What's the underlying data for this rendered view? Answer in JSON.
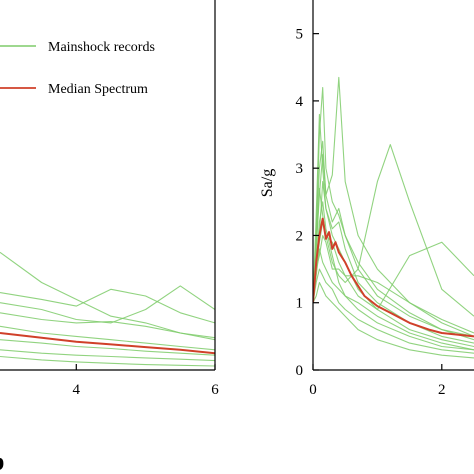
{
  "chart_data": [
    {
      "type": "line",
      "panel": "left",
      "xlabel": "",
      "ylabel": "",
      "xlim": [
        2.9,
        6
      ],
      "ylim": [
        0,
        5.5
      ],
      "xticks": [
        "4",
        "6"
      ],
      "xtick_values": [
        4,
        6
      ],
      "grid": false,
      "legend": {
        "placement": "top-right"
      },
      "series": [
        {
          "name": "Mainshock records",
          "color": "#7ecb6a",
          "x": [
            2.9,
            3.5,
            4.0,
            4.5,
            5.0,
            5.5,
            6.0
          ],
          "y": [
            1.75,
            1.3,
            1.05,
            0.8,
            0.7,
            0.55,
            0.48
          ]
        },
        {
          "name": "",
          "color": "#7ecb6a",
          "x": [
            2.9,
            3.5,
            4.0,
            4.5,
            5.0,
            5.5,
            6.0
          ],
          "y": [
            1.15,
            1.05,
            0.95,
            1.2,
            1.1,
            0.85,
            0.7
          ]
        },
        {
          "name": "",
          "color": "#7ecb6a",
          "x": [
            2.9,
            3.5,
            4.0,
            4.5,
            5.0,
            5.5,
            6.0
          ],
          "y": [
            1.0,
            0.9,
            0.75,
            0.7,
            0.9,
            1.25,
            0.9
          ]
        },
        {
          "name": "",
          "color": "#7ecb6a",
          "x": [
            2.9,
            3.5,
            4.0,
            4.5,
            5.0,
            5.5,
            6.0
          ],
          "y": [
            0.85,
            0.75,
            0.7,
            0.72,
            0.65,
            0.55,
            0.45
          ]
        },
        {
          "name": "",
          "color": "#7ecb6a",
          "x": [
            2.9,
            3.5,
            4.0,
            4.5,
            5.0,
            5.5,
            6.0
          ],
          "y": [
            0.65,
            0.55,
            0.5,
            0.45,
            0.4,
            0.35,
            0.3
          ]
        },
        {
          "name": "",
          "color": "#7ecb6a",
          "x": [
            2.9,
            3.5,
            4.0,
            4.5,
            5.0,
            5.5,
            6.0
          ],
          "y": [
            0.45,
            0.4,
            0.35,
            0.32,
            0.28,
            0.25,
            0.22
          ]
        },
        {
          "name": "",
          "color": "#7ecb6a",
          "x": [
            2.9,
            3.5,
            4.0,
            4.5,
            5.0,
            5.5,
            6.0
          ],
          "y": [
            0.3,
            0.25,
            0.22,
            0.2,
            0.18,
            0.16,
            0.14
          ]
        },
        {
          "name": "",
          "color": "#7ecb6a",
          "x": [
            2.9,
            3.5,
            4.0,
            4.5,
            5.0,
            5.5,
            6.0
          ],
          "y": [
            0.2,
            0.15,
            0.12,
            0.1,
            0.08,
            0.07,
            0.06
          ]
        },
        {
          "name": "Median Spectrum",
          "color": "#d0402a",
          "emphasis": true,
          "x": [
            2.9,
            3.5,
            4.0,
            4.5,
            5.0,
            5.5,
            6.0
          ],
          "y": [
            0.55,
            0.48,
            0.42,
            0.38,
            0.34,
            0.3,
            0.25
          ]
        }
      ]
    },
    {
      "type": "line",
      "panel": "right",
      "xlabel": "",
      "ylabel": "Sa/g",
      "xlim": [
        0,
        2.5
      ],
      "ylim": [
        0,
        5.5
      ],
      "xticks": [
        "0",
        "2"
      ],
      "xtick_values": [
        0,
        2
      ],
      "yticks": [
        "0",
        "1",
        "2",
        "3",
        "4",
        "5"
      ],
      "ytick_values": [
        0,
        1,
        2,
        3,
        4,
        5
      ],
      "grid": false,
      "series": [
        {
          "name": "",
          "color": "#7ecb6a",
          "x": [
            0,
            0.05,
            0.1,
            0.15,
            0.2,
            0.3,
            0.4,
            0.5,
            0.7,
            1.0,
            1.5,
            2.0,
            2.5
          ],
          "y": [
            1.0,
            2.0,
            3.5,
            4.2,
            3.0,
            2.5,
            2.3,
            2.0,
            1.5,
            1.1,
            0.8,
            0.6,
            0.5
          ]
        },
        {
          "name": "",
          "color": "#7ecb6a",
          "x": [
            0,
            0.05,
            0.1,
            0.15,
            0.2,
            0.3,
            0.4,
            0.5,
            0.7,
            1.0,
            1.5,
            2.0,
            2.5
          ],
          "y": [
            1.0,
            1.8,
            2.6,
            3.2,
            2.6,
            2.9,
            4.35,
            2.8,
            2.0,
            1.5,
            1.0,
            0.7,
            0.5
          ]
        },
        {
          "name": "",
          "color": "#7ecb6a",
          "x": [
            0,
            0.05,
            0.1,
            0.15,
            0.2,
            0.3,
            0.4,
            0.5,
            0.7,
            1.0,
            1.2,
            1.5,
            2.0,
            2.5
          ],
          "y": [
            1.0,
            1.5,
            1.9,
            2.2,
            2.0,
            1.6,
            1.4,
            1.3,
            1.5,
            2.8,
            3.35,
            2.5,
            1.2,
            0.8
          ]
        },
        {
          "name": "",
          "color": "#7ecb6a",
          "x": [
            0,
            0.05,
            0.1,
            0.15,
            0.2,
            0.3,
            0.4,
            0.5,
            0.7,
            1.0,
            1.5,
            2.0,
            2.5
          ],
          "y": [
            1.0,
            2.3,
            3.8,
            3.0,
            2.4,
            2.0,
            1.8,
            1.6,
            1.2,
            0.9,
            0.6,
            0.45,
            0.35
          ]
        },
        {
          "name": "",
          "color": "#7ecb6a",
          "x": [
            0,
            0.05,
            0.1,
            0.15,
            0.2,
            0.3,
            0.4,
            0.5,
            0.7,
            1.0,
            1.5,
            2.0,
            2.5
          ],
          "y": [
            1.0,
            1.4,
            1.8,
            1.6,
            1.5,
            1.3,
            1.2,
            1.1,
            1.0,
            0.8,
            0.55,
            0.4,
            0.3
          ]
        },
        {
          "name": "",
          "color": "#7ecb6a",
          "x": [
            0,
            0.05,
            0.1,
            0.15,
            0.2,
            0.3,
            0.4,
            0.5,
            0.7,
            1.0,
            1.5,
            2.0,
            2.5
          ],
          "y": [
            1.0,
            1.6,
            2.2,
            2.5,
            2.1,
            1.7,
            1.3,
            1.1,
            0.9,
            0.7,
            0.5,
            0.35,
            0.3
          ]
        },
        {
          "name": "",
          "color": "#7ecb6a",
          "x": [
            0,
            0.05,
            0.1,
            0.15,
            0.2,
            0.3,
            0.4,
            0.5,
            0.7,
            1.0,
            1.5,
            2.0,
            2.5
          ],
          "y": [
            1.0,
            1.3,
            1.5,
            1.4,
            1.3,
            1.2,
            1.0,
            0.9,
            0.75,
            0.6,
            0.4,
            0.3,
            0.25
          ]
        },
        {
          "name": "",
          "color": "#7ecb6a",
          "x": [
            0,
            0.05,
            0.1,
            0.15,
            0.2,
            0.3,
            0.4,
            0.5,
            0.7,
            1.0,
            1.5,
            2.0,
            2.5
          ],
          "y": [
            1.0,
            1.8,
            2.7,
            2.3,
            2.0,
            1.9,
            1.6,
            1.4,
            1.1,
            0.9,
            1.7,
            1.9,
            1.4
          ]
        },
        {
          "name": "",
          "color": "#7ecb6a",
          "x": [
            0,
            0.05,
            0.1,
            0.15,
            0.2,
            0.3,
            0.4,
            0.5,
            0.7,
            1.0,
            1.5,
            2.0,
            2.5
          ],
          "y": [
            1.0,
            1.1,
            1.3,
            1.2,
            1.1,
            1.0,
            0.9,
            0.8,
            0.6,
            0.45,
            0.3,
            0.22,
            0.18
          ]
        },
        {
          "name": "",
          "color": "#7ecb6a",
          "x": [
            0,
            0.05,
            0.1,
            0.15,
            0.2,
            0.3,
            0.4,
            0.5,
            0.7,
            1.0,
            1.5,
            2.0,
            2.5
          ],
          "y": [
            1.0,
            1.7,
            2.0,
            2.8,
            2.4,
            2.1,
            2.2,
            1.8,
            1.3,
            1.0,
            0.7,
            0.5,
            0.4
          ]
        },
        {
          "name": "",
          "color": "#7ecb6a",
          "x": [
            0,
            0.05,
            0.1,
            0.15,
            0.2,
            0.3,
            0.4,
            0.5,
            0.7,
            1.0,
            1.5,
            2.0,
            2.5
          ],
          "y": [
            1.0,
            2.0,
            3.0,
            3.4,
            2.6,
            2.2,
            2.4,
            2.0,
            1.6,
            1.2,
            0.85,
            0.6,
            0.45
          ]
        },
        {
          "name": "",
          "color": "#7ecb6a",
          "x": [
            0,
            0.05,
            0.1,
            0.15,
            0.2,
            0.3,
            0.4,
            0.5,
            0.7,
            1.0,
            1.5,
            2.0,
            2.5
          ],
          "y": [
            1.0,
            1.5,
            1.7,
            2.0,
            1.9,
            1.5,
            1.5,
            1.4,
            1.4,
            1.3,
            1.0,
            0.75,
            0.55
          ]
        },
        {
          "name": "",
          "color": "#d0402a",
          "emphasis": true,
          "x": [
            0,
            0.05,
            0.1,
            0.15,
            0.2,
            0.25,
            0.3,
            0.35,
            0.4,
            0.5,
            0.6,
            0.7,
            0.8,
            1.0,
            1.2,
            1.5,
            1.8,
            2.0,
            2.5
          ],
          "y": [
            1.0,
            1.6,
            2.0,
            2.25,
            1.95,
            2.05,
            1.8,
            1.9,
            1.75,
            1.6,
            1.4,
            1.25,
            1.1,
            0.95,
            0.85,
            0.7,
            0.6,
            0.55,
            0.5
          ]
        }
      ]
    }
  ]
}
